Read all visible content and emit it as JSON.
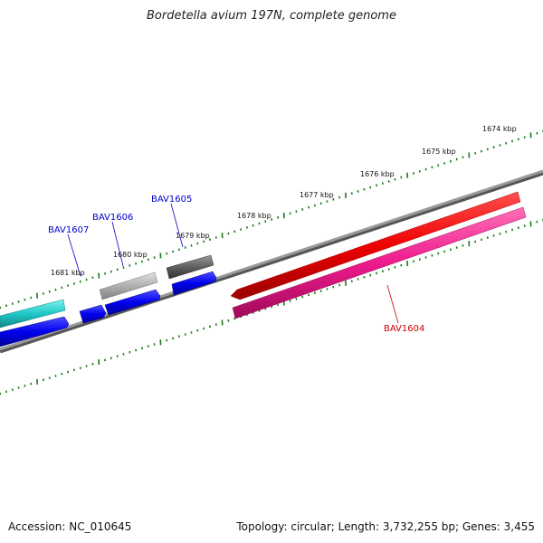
{
  "title": "Bordetella avium 197N, complete genome",
  "footer": {
    "accession": "Accession: NC_010645",
    "summary": "Topology: circular; Length: 3,732,255 bp; Genes: 3,455"
  },
  "scale_labels": [
    "1674 kbp",
    "1675 kbp",
    "1676 kbp",
    "1677 kbp",
    "1678 kbp",
    "1679 kbp",
    "1680 kbp",
    "1681 kbp"
  ],
  "gene_labels": {
    "bav1604": "BAV1604",
    "bav1605": "BAV1605",
    "bav1606": "BAV1606",
    "bav1607": "BAV1607"
  },
  "colors": {
    "backbone": "#808080",
    "tick": "#1a7a1a",
    "label_blue": "#0000cc",
    "label_red": "#cc0000",
    "cds_blue": "#0000ee",
    "cds_red": "#ee0000",
    "cds_pink": "#ee1a8c",
    "cds_cyan": "#20c8c8",
    "cds_grey": "#b0b0b0",
    "cds_darkgrey": "#606060"
  }
}
